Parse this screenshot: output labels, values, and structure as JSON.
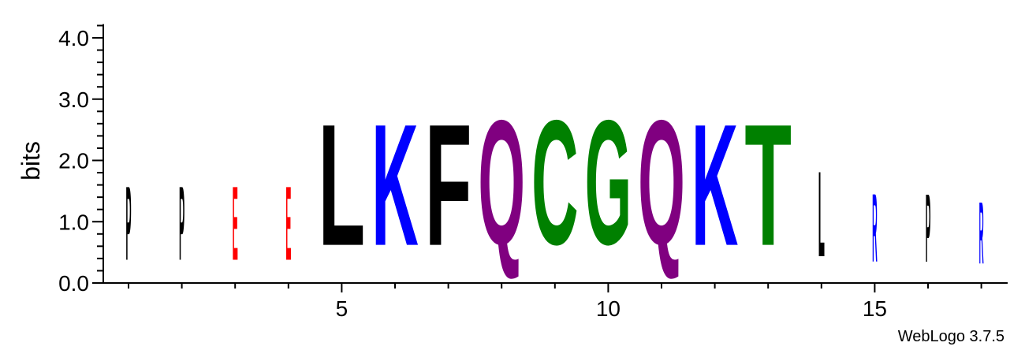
{
  "chart_data": {
    "type": "sequence-logo",
    "ylabel": "bits",
    "ylim": [
      0,
      4.3
    ],
    "yticks": [
      0.0,
      1.0,
      2.0,
      3.0,
      4.0
    ],
    "ytick_labels": [
      "0.0",
      "1.0",
      "2.0",
      "3.0",
      "4.0"
    ],
    "xlim": [
      0.5,
      17.5
    ],
    "xticks": [
      5,
      10,
      15
    ],
    "xtick_labels": [
      "5",
      "10",
      "15"
    ],
    "colors": {
      "black": "#000000",
      "blue": "#0000ff",
      "red": "#ff0000",
      "purple": "#800080",
      "green": "#008000"
    },
    "positions": [
      {
        "pos": 1,
        "letter": "P",
        "color": "#000000",
        "bits": 1.93
      },
      {
        "pos": 2,
        "letter": "P",
        "color": "#000000",
        "bits": 1.93
      },
      {
        "pos": 3,
        "letter": "E",
        "color": "#ff0000",
        "bits": 1.93
      },
      {
        "pos": 4,
        "letter": "E",
        "color": "#ff0000",
        "bits": 1.93
      },
      {
        "pos": 5,
        "letter": "L",
        "color": "#000000",
        "bits": 3.17
      },
      {
        "pos": 6,
        "letter": "K",
        "color": "#0000ff",
        "bits": 3.17
      },
      {
        "pos": 7,
        "letter": "F",
        "color": "#000000",
        "bits": 3.17
      },
      {
        "pos": 8,
        "letter": "Q",
        "color": "#800080",
        "bits": 3.25
      },
      {
        "pos": 9,
        "letter": "C",
        "color": "#008000",
        "bits": 3.25
      },
      {
        "pos": 10,
        "letter": "G",
        "color": "#008000",
        "bits": 3.25
      },
      {
        "pos": 11,
        "letter": "Q",
        "color": "#800080",
        "bits": 3.25
      },
      {
        "pos": 12,
        "letter": "K",
        "color": "#0000ff",
        "bits": 3.17
      },
      {
        "pos": 13,
        "letter": "T",
        "color": "#008000",
        "bits": 3.17
      },
      {
        "pos": 14,
        "letter": "L",
        "color": "#000000",
        "bits": 2.23
      },
      {
        "pos": 15,
        "letter": "R",
        "color": "#0000ff",
        "bits": 1.78
      },
      {
        "pos": 16,
        "letter": "P",
        "color": "#000000",
        "bits": 1.78
      },
      {
        "pos": 17,
        "letter": "R",
        "color": "#0000ff",
        "bits": 1.62
      }
    ]
  },
  "footer": {
    "credit": "WebLogo 3.7.5"
  }
}
